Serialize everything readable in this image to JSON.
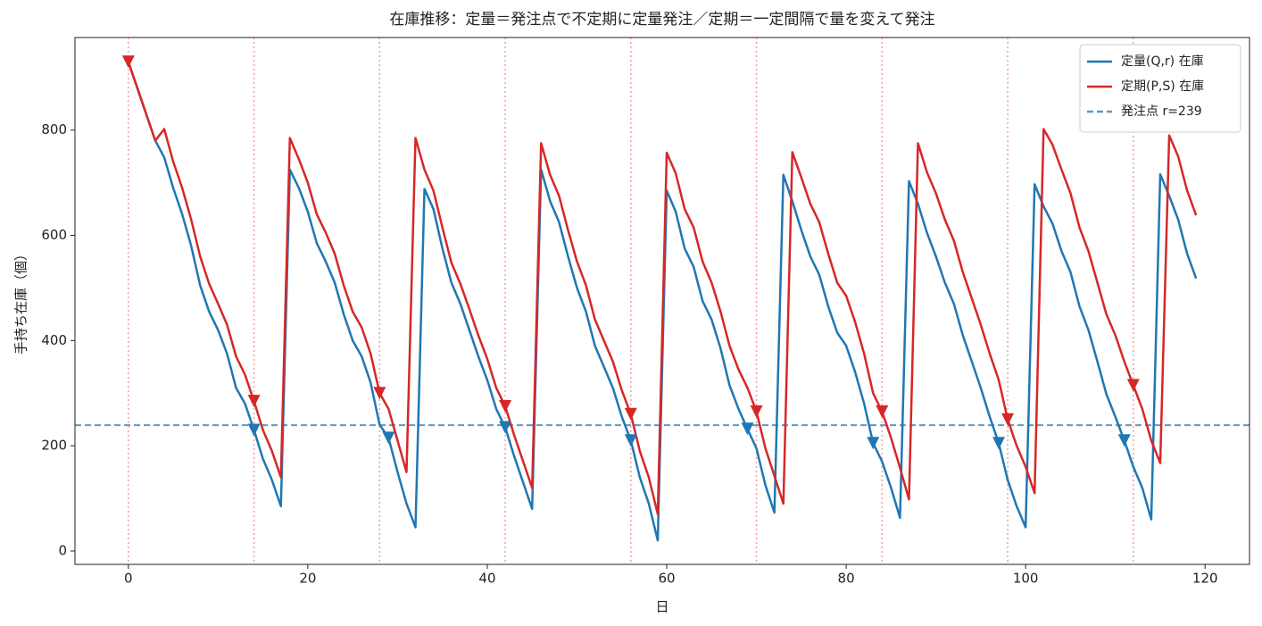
{
  "chart_data": {
    "type": "line",
    "title": "在庫推移：定量＝発注点で不定期に定量発注／定期＝一定間隔で量を変えて発注",
    "x_label": "日",
    "y_label": "手持ち在庫（個）",
    "x": [
      0,
      1,
      2,
      3,
      4,
      5,
      6,
      7,
      8,
      9,
      10,
      11,
      12,
      13,
      14,
      15,
      16,
      17,
      18,
      19,
      20,
      21,
      22,
      23,
      24,
      25,
      26,
      27,
      28,
      29,
      30,
      31,
      32,
      33,
      34,
      35,
      36,
      37,
      38,
      39,
      40,
      41,
      42,
      43,
      44,
      45,
      46,
      47,
      48,
      49,
      50,
      51,
      52,
      53,
      54,
      55,
      56,
      57,
      58,
      59,
      60,
      61,
      62,
      63,
      64,
      65,
      66,
      67,
      68,
      69,
      70,
      71,
      72,
      73,
      74,
      75,
      76,
      77,
      78,
      79,
      80,
      81,
      82,
      83,
      84,
      85,
      86,
      87,
      88,
      89,
      90,
      91,
      92,
      93,
      94,
      95,
      96,
      97,
      98,
      99,
      100,
      101,
      102,
      103,
      104,
      105,
      106,
      107,
      108,
      109,
      110,
      111,
      112,
      113,
      114,
      115,
      116,
      117,
      118,
      119
    ],
    "series": [
      {
        "name": "定量(Q,r) 在庫",
        "color": "#1f77b4",
        "values": [
          930,
          880,
          830,
          780,
          748,
          690,
          640,
          580,
          505,
          455,
          420,
          375,
          310,
          280,
          230,
          175,
          135,
          85,
          725,
          690,
          645,
          585,
          550,
          510,
          450,
          400,
          370,
          320,
          240,
          215,
          150,
          90,
          45,
          688,
          650,
          575,
          510,
          470,
          420,
          370,
          325,
          270,
          235,
          180,
          130,
          80,
          725,
          665,
          625,
          560,
          500,
          455,
          390,
          350,
          310,
          255,
          210,
          140,
          90,
          20,
          685,
          645,
          575,
          540,
          475,
          440,
          385,
          315,
          270,
          232,
          195,
          125,
          73,
          715,
          665,
          610,
          560,
          525,
          465,
          415,
          390,
          340,
          280,
          205,
          170,
          120,
          63,
          703,
          660,
          605,
          560,
          510,
          470,
          410,
          360,
          310,
          255,
          205,
          135,
          85,
          45,
          697,
          655,
          622,
          570,
          530,
          465,
          420,
          360,
          298,
          255,
          210,
          160,
          120,
          60,
          716,
          675,
          630,
          565,
          518
        ],
        "marker_days": [
          14,
          29,
          42,
          56,
          69,
          83,
          97,
          111
        ]
      },
      {
        "name": "定期(P,S) 在庫",
        "color": "#d62728",
        "values": [
          930,
          880,
          830,
          780,
          802,
          740,
          690,
          630,
          560,
          508,
          470,
          430,
          370,
          335,
          285,
          230,
          190,
          140,
          785,
          745,
          700,
          640,
          605,
          565,
          505,
          455,
          425,
          375,
          300,
          270,
          210,
          150,
          785,
          725,
          685,
          615,
          548,
          508,
          460,
          410,
          365,
          310,
          275,
          220,
          170,
          120,
          775,
          715,
          675,
          610,
          550,
          505,
          440,
          400,
          360,
          305,
          260,
          190,
          140,
          70,
          757,
          718,
          650,
          615,
          550,
          510,
          455,
          390,
          345,
          310,
          265,
          195,
          143,
          90,
          758,
          710,
          660,
          625,
          565,
          510,
          485,
          435,
          375,
          300,
          265,
          215,
          158,
          98,
          775,
          720,
          680,
          630,
          590,
          530,
          480,
          430,
          375,
          325,
          250,
          200,
          160,
          110,
          802,
          772,
          725,
          680,
          615,
          570,
          510,
          450,
          410,
          360,
          315,
          270,
          210,
          167,
          790,
          750,
          685,
          638
        ],
        "marker_days": [
          0,
          14,
          28,
          42,
          56,
          70,
          84,
          98,
          112
        ]
      }
    ],
    "hlines": [
      {
        "name": "発注点 r=239",
        "value": 239,
        "color": "#5b9ac4"
      }
    ],
    "vlines": {
      "values": [
        0,
        14,
        28,
        42,
        56,
        70,
        84,
        98,
        112
      ],
      "color": "#f2a0a0"
    },
    "xlim": [
      -5.95,
      124.95
    ],
    "ylim": [
      -25.5,
      976
    ],
    "xticks": [
      0,
      20,
      40,
      60,
      80,
      100,
      120
    ],
    "yticks": [
      0,
      200,
      400,
      600,
      800
    ],
    "legend": "upper right"
  }
}
